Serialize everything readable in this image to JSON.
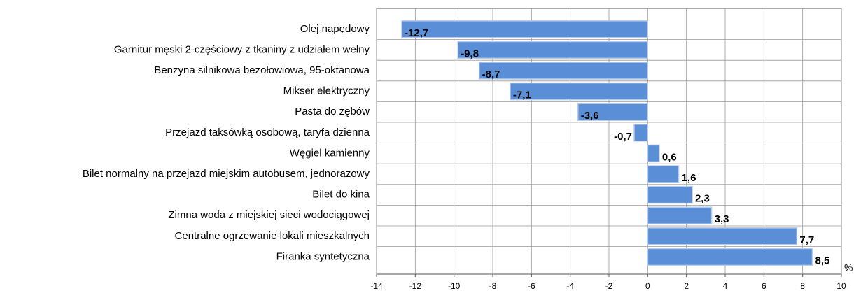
{
  "chart_data": {
    "type": "barh",
    "categories": [
      "Olej napędowy",
      "Garnitur męski 2-częściowy z tkaniny z udziałem wełny",
      "Benzyna silnikowa bezołowiowa, 95-oktanowa",
      "Mikser elektryczny",
      "Pasta do zębów",
      "Przejazd taksówką osobową, taryfa dzienna",
      "Węgiel kamienny",
      "Bilet normalny na przejazd miejskim autobusem, jednorazowy",
      "Bilet do kina",
      "Zimna woda z miejskiej sieci wodociągowej",
      "Centralne ogrzewanie lokali mieszkalnych",
      "Firanka syntetyczna"
    ],
    "values": [
      -12.7,
      -9.8,
      -8.7,
      -7.1,
      -3.6,
      -0.7,
      0.6,
      1.6,
      2.3,
      3.3,
      7.7,
      8.5
    ],
    "value_labels": [
      "-12,7",
      "-9,8",
      "-8,7",
      "-7,1",
      "-3,6",
      "-0,7",
      "0,6",
      "1,6",
      "2,3",
      "3,3",
      "7,7",
      "8,5"
    ],
    "color": "#5a8fd8",
    "x_label": "%",
    "xlim": [
      -14,
      10
    ],
    "xticks": [
      -14,
      -12,
      -10,
      -8,
      -6,
      -4,
      -2,
      0,
      2,
      4,
      6,
      8,
      10
    ],
    "grid": true
  }
}
